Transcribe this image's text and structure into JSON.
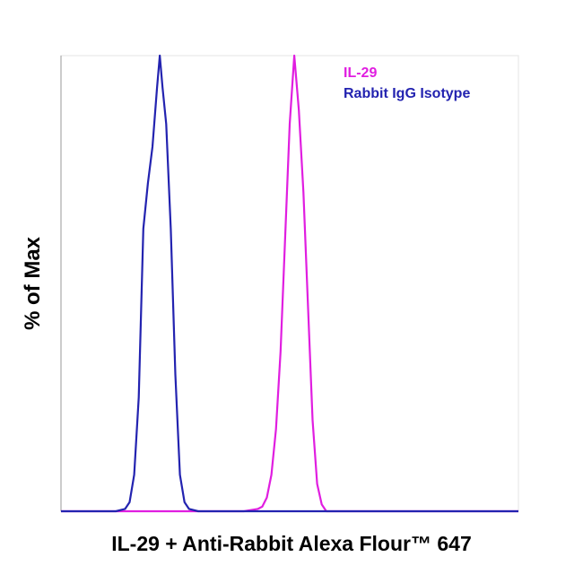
{
  "chart_data": {
    "type": "line",
    "x_label": "IL-29 + Anti-Rabbit Alexa Flour™ 647",
    "y_label": "% of Max",
    "xlim": [
      0,
      1000
    ],
    "ylim": [
      0,
      100
    ],
    "legend": "top-right",
    "series": [
      {
        "name": "IL-29",
        "color": "#e01ee0",
        "x": [
          0,
          400,
          430,
          440,
          450,
          460,
          470,
          480,
          490,
          500,
          510,
          520,
          530,
          540,
          550,
          560,
          570,
          580,
          600,
          1000
        ],
        "values": [
          0,
          0,
          0.5,
          1,
          3,
          8,
          18,
          35,
          60,
          85,
          100,
          88,
          70,
          45,
          20,
          6,
          1.5,
          0,
          0,
          0
        ]
      },
      {
        "name": "Rabbit IgG Isotype",
        "color": "#2323b0",
        "x": [
          0,
          60,
          120,
          140,
          150,
          160,
          170,
          180,
          190,
          200,
          210,
          216,
          222,
          230,
          240,
          250,
          260,
          270,
          280,
          300,
          400,
          600,
          1000
        ],
        "values": [
          0,
          0,
          0,
          0.5,
          2,
          8,
          25,
          62,
          72,
          80,
          93,
          100,
          93,
          85,
          62,
          30,
          8,
          2,
          0.5,
          0,
          0,
          0,
          0
        ]
      }
    ]
  }
}
